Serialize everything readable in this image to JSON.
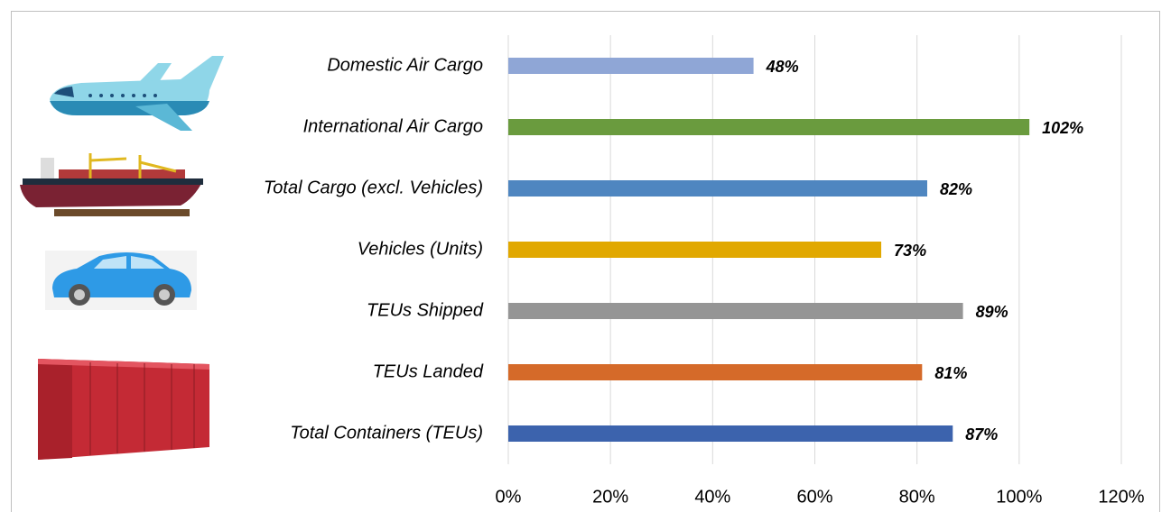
{
  "chart_data": {
    "type": "bar",
    "orientation": "horizontal",
    "categories": [
      "Domestic Air Cargo",
      "International Air Cargo",
      "Total Cargo (excl. Vehicles)",
      "Vehicles (Units)",
      "TEUs Shipped",
      "TEUs Landed",
      "Total Containers (TEUs)"
    ],
    "values": [
      48,
      102,
      82,
      73,
      89,
      81,
      87
    ],
    "value_labels": [
      "48%",
      "102%",
      "82%",
      "73%",
      "89%",
      "81%",
      "87%"
    ],
    "colors": [
      "#8fa6d6",
      "#6a9b3e",
      "#4f86c0",
      "#e1a800",
      "#959595",
      "#d56a29",
      "#3c63ad"
    ],
    "xlim": [
      0,
      120
    ],
    "xticks": [
      {
        "value": 0,
        "label": "0%"
      },
      {
        "value": 20,
        "label": "20%"
      },
      {
        "value": 40,
        "label": "40%"
      },
      {
        "value": 60,
        "label": "60%"
      },
      {
        "value": 80,
        "label": "80%"
      },
      {
        "value": 100,
        "label": "100%"
      },
      {
        "value": 120,
        "label": "120%"
      }
    ],
    "grid": true
  }
}
